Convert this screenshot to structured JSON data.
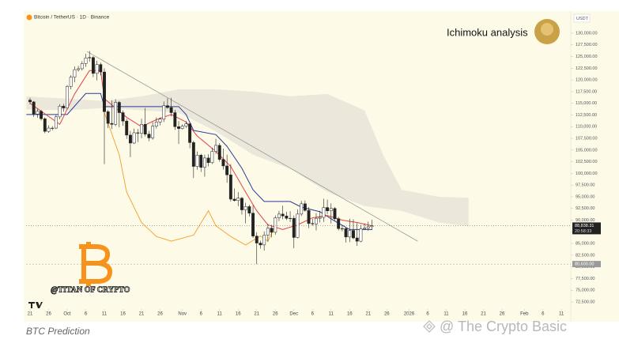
{
  "chart_data": {
    "type": "candlestick",
    "header": "Bitcoin / TetherUS · 1D · Binance",
    "currency": "USDT",
    "title": "Ichimoku analysis",
    "watermark_text": "@TITAN OF CRYPTO",
    "caption": "BTC Prediction",
    "credit": "@ The Crypto Basic",
    "up_color": "#ffffff",
    "down_color": "#222222",
    "xlim": [
      -1.06,
      145.5
    ],
    "ylim": [
      71150,
      133720
    ],
    "xticks": [
      {
        "value": 0,
        "label": "21"
      },
      {
        "value": 5,
        "label": "26"
      },
      {
        "value": 10,
        "label": "Oct"
      },
      {
        "value": 15,
        "label": "6"
      },
      {
        "value": 20,
        "label": "11"
      },
      {
        "value": 25,
        "label": "16"
      },
      {
        "value": 30,
        "label": "21"
      },
      {
        "value": 35,
        "label": "26"
      },
      {
        "value": 41,
        "label": "Nov"
      },
      {
        "value": 46,
        "label": "6"
      },
      {
        "value": 51,
        "label": "11"
      },
      {
        "value": 56,
        "label": "16"
      },
      {
        "value": 61,
        "label": "21"
      },
      {
        "value": 66,
        "label": "26"
      },
      {
        "value": 71,
        "label": "Dec"
      },
      {
        "value": 76,
        "label": "6"
      },
      {
        "value": 81,
        "label": "11"
      },
      {
        "value": 86,
        "label": "16"
      },
      {
        "value": 91,
        "label": "21"
      },
      {
        "value": 96,
        "label": "26"
      },
      {
        "value": 102,
        "label": "2026"
      },
      {
        "value": 107,
        "label": "6"
      },
      {
        "value": 112,
        "label": "11"
      },
      {
        "value": 117,
        "label": "16"
      },
      {
        "value": 122,
        "label": "21"
      },
      {
        "value": 127,
        "label": "26"
      },
      {
        "value": 133,
        "label": "Feb"
      },
      {
        "value": 138,
        "label": "6"
      },
      {
        "value": 143,
        "label": "11"
      }
    ],
    "yticks": [
      {
        "value": 72500,
        "label": "72,500.00"
      },
      {
        "value": 75000,
        "label": "75,000.00"
      },
      {
        "value": 77500,
        "label": "77,500.00"
      },
      {
        "value": 80000,
        "label": "80,000.00"
      },
      {
        "value": 82500,
        "label": "82,500.00"
      },
      {
        "value": 85000,
        "label": "85,000.00"
      },
      {
        "value": 87500,
        "label": "87,500.00"
      },
      {
        "value": 90000,
        "label": "90,000.00"
      },
      {
        "value": 92500,
        "label": "92,500.00"
      },
      {
        "value": 95000,
        "label": "95,000.00"
      },
      {
        "value": 97500,
        "label": "97,500.00"
      },
      {
        "value": 100000,
        "label": "100,000.00"
      },
      {
        "value": 102500,
        "label": "102,500.00"
      },
      {
        "value": 105000,
        "label": "105,000.00"
      },
      {
        "value": 107500,
        "label": "107,500.00"
      },
      {
        "value": 110000,
        "label": "110,000.00"
      },
      {
        "value": 112500,
        "label": "112,500.00"
      },
      {
        "value": 115000,
        "label": "115,000.00"
      },
      {
        "value": 117500,
        "label": "117,500.00"
      },
      {
        "value": 120000,
        "label": "120,000.00"
      },
      {
        "value": 122500,
        "label": "122,500.00"
      },
      {
        "value": 125000,
        "label": "125,000.00"
      },
      {
        "value": 127500,
        "label": "127,500.00"
      },
      {
        "value": 130000,
        "label": "130,000.00"
      }
    ],
    "last_price": {
      "value": 88838.31,
      "label": "88,838.31"
    },
    "countdown": "20:58:33",
    "level": {
      "value": 80600,
      "label": "80,600.00"
    },
    "candles": {
      "x": [
        0,
        1,
        2,
        3,
        4,
        5,
        6,
        7,
        8,
        9,
        10,
        11,
        12,
        13,
        14,
        15,
        16,
        17,
        18,
        19,
        20,
        21,
        22,
        23,
        24,
        25,
        26,
        27,
        28,
        29,
        30,
        31,
        32,
        33,
        34,
        35,
        36,
        37,
        38,
        39,
        40,
        41,
        42,
        43,
        44,
        45,
        46,
        47,
        48,
        49,
        50,
        51,
        52,
        53,
        54,
        55,
        56,
        57,
        58,
        59,
        60,
        61,
        62,
        63,
        64,
        65,
        66,
        67,
        68,
        69,
        70,
        71,
        72,
        73,
        74,
        75,
        76,
        77,
        78,
        79,
        80,
        81,
        82,
        83,
        84,
        85,
        86,
        87,
        88,
        89,
        90,
        91,
        92
      ],
      "open": [
        115700,
        115300,
        112700,
        113300,
        111700,
        109000,
        109700,
        109700,
        112100,
        114400,
        114000,
        118600,
        120600,
        122200,
        122400,
        123500,
        124700,
        124800,
        121400,
        123300,
        121700,
        113200,
        110700,
        110500,
        115200,
        113000,
        111200,
        108200,
        106500,
        108700,
        108600,
        110500,
        108400,
        107600,
        110100,
        111000,
        111600,
        114500,
        114100,
        113000,
        110000,
        109600,
        110100,
        110600,
        106600,
        101500,
        103900,
        101300,
        103300,
        102300,
        104700,
        106000,
        103000,
        101600,
        99700,
        94500,
        94200,
        94700,
        92200,
        92900,
        91500,
        86600,
        85100,
        84700,
        86800,
        88300,
        87400,
        90500,
        91300,
        90900,
        90400,
        90400,
        86300,
        91300,
        93500,
        92100,
        89300,
        89200,
        90400,
        90600,
        92700,
        92000,
        92500,
        90300,
        88200,
        88200,
        86400,
        87800,
        86200,
        85500,
        88100,
        88300,
        88600
      ],
      "high": [
        116200,
        115500,
        113800,
        113600,
        112000,
        110300,
        110100,
        112500,
        114800,
        114900,
        118900,
        121000,
        122900,
        123000,
        124000,
        125600,
        126200,
        125100,
        124100,
        123700,
        122500,
        113600,
        115600,
        115900,
        115500,
        113500,
        111700,
        109100,
        109600,
        109500,
        111700,
        114000,
        109100,
        111000,
        112000,
        112000,
        115400,
        116100,
        116200,
        113600,
        111200,
        110500,
        111200,
        110900,
        107000,
        104700,
        104200,
        104000,
        104100,
        105500,
        107400,
        106500,
        105300,
        104000,
        102000,
        96800,
        96000,
        95000,
        93700,
        93300,
        93200,
        87400,
        85600,
        87600,
        89200,
        89000,
        91000,
        92000,
        93100,
        91800,
        91900,
        91000,
        92300,
        94100,
        94200,
        92800,
        90300,
        91500,
        92000,
        94600,
        94400,
        93600,
        92800,
        90700,
        89000,
        88400,
        90300,
        90200,
        89400,
        89000,
        89300,
        89700,
        90100
      ],
      "low": [
        114800,
        112100,
        111900,
        111300,
        108600,
        108700,
        109200,
        109500,
        111600,
        113200,
        113900,
        118000,
        119500,
        121800,
        122000,
        122800,
        123900,
        120600,
        119900,
        121000,
        102000,
        109700,
        109500,
        110100,
        109900,
        110200,
        107400,
        103500,
        106300,
        106700,
        107500,
        107900,
        106900,
        107200,
        109600,
        110300,
        111000,
        113800,
        112200,
        109300,
        106300,
        109400,
        109700,
        105400,
        99000,
        100800,
        100300,
        99300,
        101500,
        102000,
        104200,
        102500,
        100800,
        98000,
        94000,
        94000,
        93000,
        91200,
        89300,
        90800,
        86200,
        80600,
        83900,
        83500,
        85400,
        86300,
        86900,
        89800,
        90200,
        90000,
        89600,
        84000,
        86100,
        90900,
        91800,
        88300,
        88800,
        87800,
        89500,
        89600,
        91300,
        89300,
        89900,
        87800,
        87600,
        85200,
        85300,
        85900,
        84500,
        85300,
        87900,
        87700,
        87900
      ],
      "close": [
        115300,
        112700,
        113300,
        111700,
        109000,
        109700,
        109700,
        112100,
        114400,
        114000,
        118600,
        120600,
        122200,
        122400,
        123500,
        124700,
        124800,
        121400,
        123300,
        121700,
        113200,
        110700,
        110500,
        115200,
        113000,
        111200,
        108200,
        106500,
        108700,
        108600,
        110500,
        108400,
        107600,
        110100,
        111000,
        111600,
        114500,
        114100,
        113000,
        110000,
        109600,
        110100,
        110600,
        106600,
        101500,
        103900,
        101300,
        103300,
        102300,
        104700,
        106000,
        103000,
        101600,
        99700,
        94500,
        94200,
        94700,
        92200,
        92900,
        91500,
        86600,
        85100,
        84700,
        86800,
        88300,
        87400,
        90500,
        91300,
        90900,
        90400,
        90400,
        86300,
        91300,
        93500,
        92100,
        89300,
        89200,
        90400,
        90600,
        92700,
        92000,
        92500,
        90300,
        88200,
        88200,
        86400,
        87800,
        86200,
        85500,
        88100,
        88300,
        88600,
        88800
      ]
    },
    "cloud": {
      "color": "#e3e0d6",
      "x": [
        -1,
        10,
        20,
        30,
        40,
        50,
        60,
        70,
        80,
        90,
        95,
        100,
        110,
        118
      ],
      "top": [
        116500,
        116000,
        115500,
        116500,
        118000,
        118000,
        117500,
        116500,
        117000,
        113500,
        104000,
        96500,
        95000,
        94800
      ],
      "bottom": [
        113700,
        113500,
        114000,
        113500,
        113000,
        109000,
        104000,
        101000,
        96000,
        93000,
        92500,
        92000,
        89500,
        88700
      ]
    },
    "lines": [
      {
        "color": "#2b3a9a",
        "x": [
          -1,
          10,
          15,
          19,
          20,
          40,
          42,
          44,
          50,
          53,
          57,
          60,
          63,
          70,
          73,
          78,
          82,
          86,
          92
        ],
        "values": [
          112600,
          112600,
          117100,
          117100,
          114300,
          114300,
          112600,
          109200,
          108300,
          105800,
          101100,
          96500,
          94000,
          94000,
          92800,
          91800,
          89800,
          88000,
          88000
        ]
      },
      {
        "color": "#e0404a",
        "x": [
          0,
          8,
          12,
          16,
          19,
          20,
          26,
          30,
          34,
          38,
          42,
          45,
          50,
          54,
          58,
          61,
          64,
          68,
          72,
          76,
          80,
          84,
          88,
          92
        ],
        "values": [
          115000,
          110500,
          117000,
          122000,
          122000,
          116000,
          112000,
          110000,
          111500,
          112600,
          111000,
          108000,
          104700,
          101500,
          96000,
          92000,
          89000,
          88000,
          89000,
          90500,
          91000,
          90000,
          89500,
          88800
        ]
      },
      {
        "color": "#f4a534",
        "x": [
          20,
          24,
          26,
          30,
          34,
          38,
          44,
          48,
          50,
          54,
          58,
          62,
          64,
          66
        ],
        "values": [
          113000,
          104000,
          96000,
          89500,
          86500,
          85500,
          86800,
          92000,
          88800,
          86500,
          84700,
          86600,
          85500,
          88800
        ]
      }
    ],
    "trendline": {
      "color": "#9a9a9a",
      "x": [
        15.3,
        104.3
      ],
      "values": [
        126100,
        85500
      ]
    }
  }
}
